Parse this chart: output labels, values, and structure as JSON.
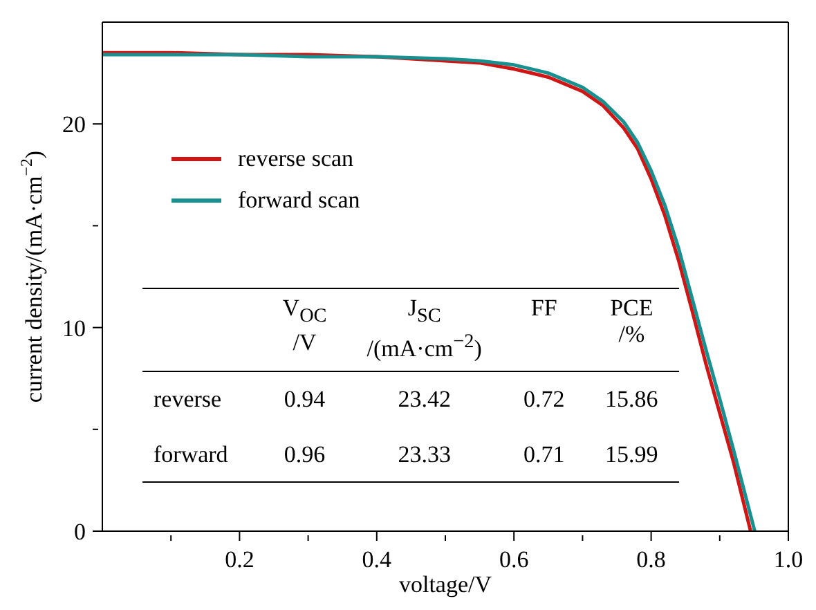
{
  "chart_data": {
    "type": "line",
    "xlabel": "voltage/V",
    "ylabel": "current density/(mA·cm$^{−2}$)",
    "xlim": [
      0,
      1
    ],
    "xticks": [
      {
        "value": 0.1,
        "label": null
      },
      0.2,
      {
        "value": 0.3,
        "label": null
      },
      0.4,
      {
        "value": 0.5,
        "label": null
      },
      0.6,
      {
        "value": 0.7,
        "label": null
      },
      0.8,
      {
        "value": 0.9,
        "label": null
      },
      {
        "value": 1,
        "label": "1.0"
      }
    ],
    "ylim": [
      0,
      25
    ],
    "yticks": [
      0,
      {
        "value": 5,
        "label": null
      },
      10,
      {
        "value": 15,
        "label": null
      },
      20
    ],
    "grid": false,
    "legend": "top left",
    "line_style": "solid",
    "marker": "none",
    "series": [
      {
        "name": "reverse scan",
        "color": "#d01515",
        "x": [
          0,
          0.1,
          0.2,
          0.3,
          0.4,
          0.5,
          0.55,
          0.6,
          0.65,
          0.7,
          0.73,
          0.76,
          0.78,
          0.8,
          0.82,
          0.84,
          0.86,
          0.88,
          0.9,
          0.92,
          0.945
        ],
        "values": [
          23.5,
          23.5,
          23.4,
          23.4,
          23.3,
          23.1,
          23,
          22.7,
          22.3,
          21.6,
          20.9,
          19.8,
          18.8,
          17.3,
          15.5,
          13.3,
          10.8,
          8.2,
          5.8,
          3.4,
          0
        ]
      },
      {
        "name": "forward scan",
        "color": "#17908f",
        "x": [
          0,
          0.1,
          0.2,
          0.3,
          0.4,
          0.5,
          0.55,
          0.6,
          0.65,
          0.7,
          0.73,
          0.76,
          0.78,
          0.8,
          0.82,
          0.84,
          0.86,
          0.88,
          0.9,
          0.92,
          0.951
        ],
        "values": [
          23.4,
          23.4,
          23.4,
          23.3,
          23.3,
          23.2,
          23.1,
          22.9,
          22.5,
          21.8,
          21.1,
          20.1,
          19.1,
          17.7,
          16,
          13.9,
          11.4,
          8.9,
          6.5,
          4,
          0
        ]
      }
    ],
    "annotations": [
      "V$_{OC}$\n/V",
      "J$_{SC}$\n/(mA·cm$^{−2}$)",
      "FF",
      "PCE\n/%",
      "reverse",
      "0.94",
      "23.42",
      "0.72",
      "15.86",
      "forward",
      "0.96",
      "23.33",
      "0.71",
      "15.99"
    ]
  }
}
